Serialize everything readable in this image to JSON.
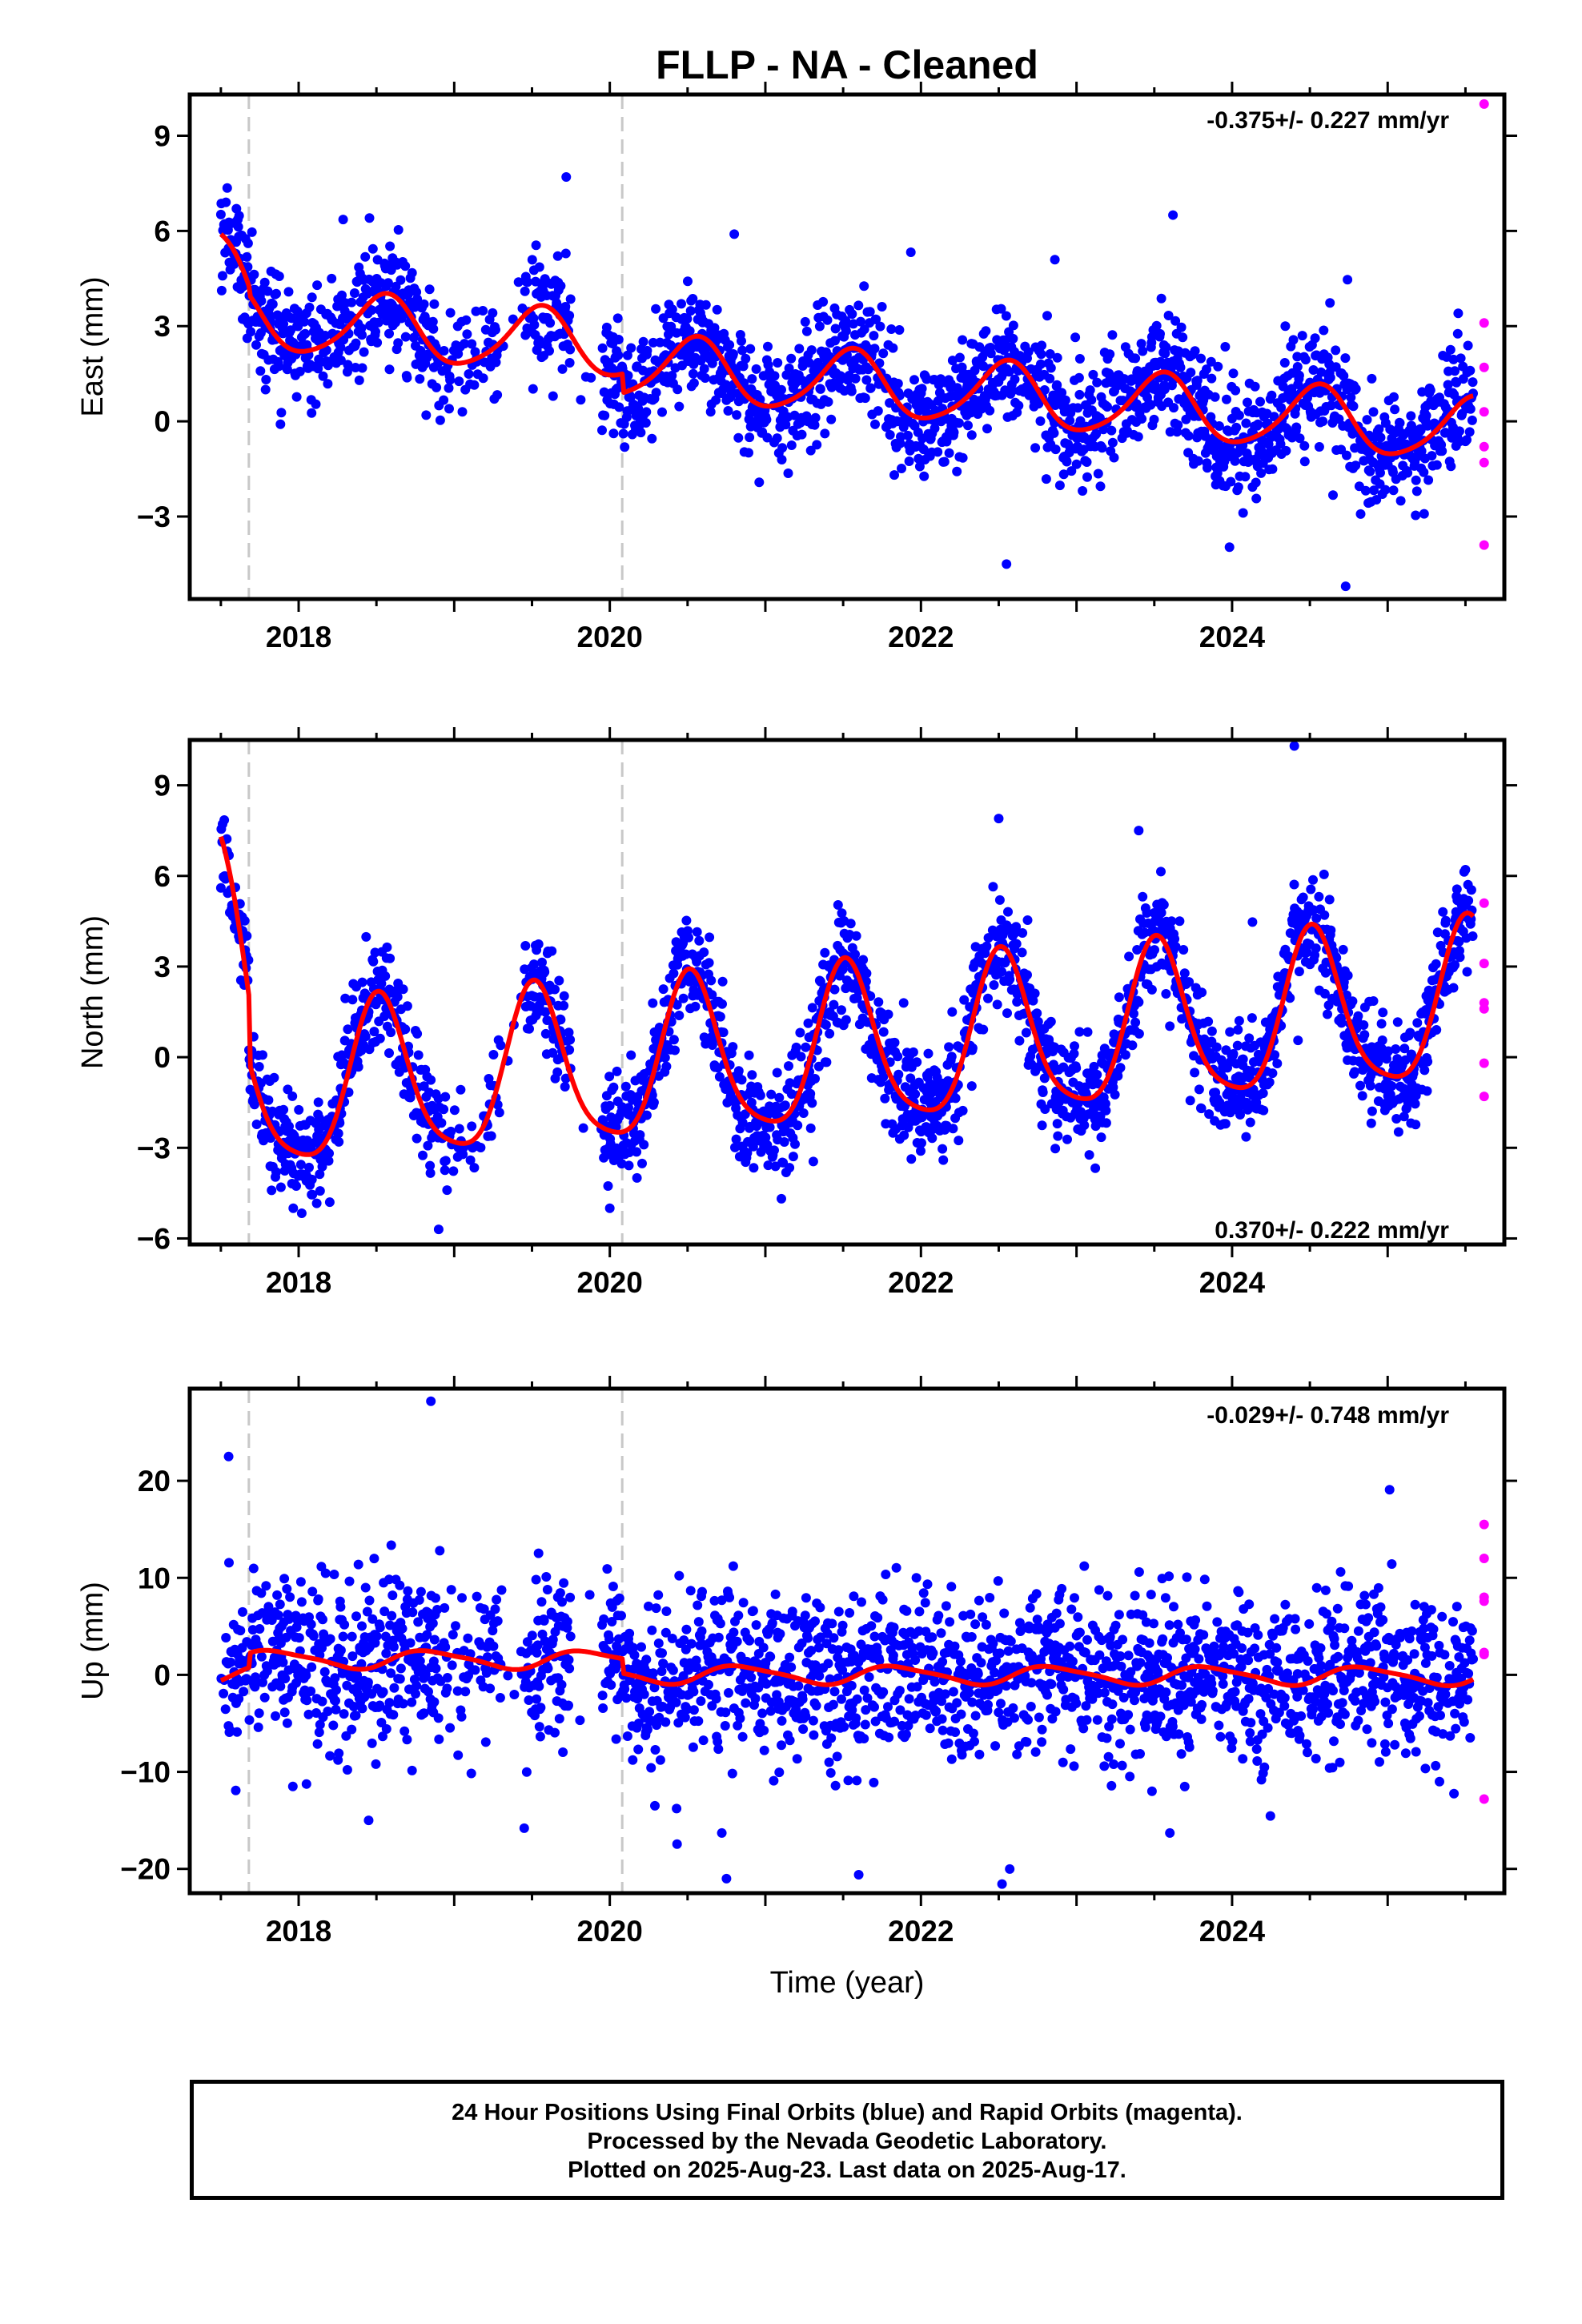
{
  "title": "FLLP  - NA - Cleaned",
  "xlabel": "Time (year)",
  "footer": {
    "line1": "24 Hour Positions Using Final Orbits (blue) and Rapid Orbits (magenta).",
    "line2": "Processed by the Nevada Geodetic Laboratory.",
    "line3": "Plotted on 2025-Aug-23. Last data on 2025-Aug-17."
  },
  "colors": {
    "final_points": "#0000ff",
    "rapid_points": "#ff00ff",
    "model": "#ff0000",
    "steps": "#c8c8c8"
  },
  "chart_data": [
    {
      "type": "scatter",
      "component": "east",
      "ylabel": "East (mm)",
      "rate_text": "-0.375+/- 0.227 mm/yr",
      "xlim": [
        2017.3,
        2025.75
      ],
      "ylim": [
        -5.6,
        10.3
      ],
      "xticks": [
        2018,
        2020,
        2022,
        2024
      ],
      "yticks": [
        -3,
        0,
        3,
        6,
        9
      ],
      "step_lines": [
        2017.68,
        2020.08
      ],
      "data_span": [
        2017.5,
        2025.55
      ],
      "model": {
        "offset": 1.2,
        "rate": -0.375,
        "ref_year": 2021.5,
        "annual_amplitude": 1.0,
        "annual_peak": 0.55,
        "semiannual_amplitude": 0.15,
        "semiannual_peak": 0.1,
        "start_transient": 2.2,
        "noise_sigma": 0.9,
        "segment_offsets": [
          {
            "from": 2017.68,
            "to": 2020.08,
            "offset": 0.6
          }
        ]
      },
      "gaps": [
        [
          2019.3,
          2019.45
        ],
        [
          2019.75,
          2019.95
        ]
      ],
      "outliers": [
        {
          "x": 2017.6,
          "y": 6.7
        },
        {
          "x": 2017.52,
          "y": 6.2
        },
        {
          "x": 2019.72,
          "y": 7.7
        },
        {
          "x": 2023.62,
          "y": 6.5
        },
        {
          "x": 2020.8,
          "y": 5.9
        },
        {
          "x": 2024.73,
          "y": -5.2
        },
        {
          "x": 2022.55,
          "y": -4.5
        }
      ],
      "rapid_points": [
        {
          "x": 2025.62,
          "y": 10.0
        },
        {
          "x": 2025.62,
          "y": 3.1
        },
        {
          "x": 2025.62,
          "y": 1.7
        },
        {
          "x": 2025.62,
          "y": 0.3
        },
        {
          "x": 2025.62,
          "y": -0.8
        },
        {
          "x": 2025.62,
          "y": -1.3
        },
        {
          "x": 2025.62,
          "y": -3.9
        }
      ]
    },
    {
      "type": "scatter",
      "component": "north",
      "ylabel": "North (mm)",
      "rate_text": "0.370+/- 0.222 mm/yr",
      "xlim": [
        2017.3,
        2025.75
      ],
      "ylim": [
        -6.2,
        10.5
      ],
      "xticks": [
        2018,
        2020,
        2022,
        2024
      ],
      "yticks": [
        -6,
        -3,
        0,
        3,
        6,
        9
      ],
      "step_lines": [
        2017.68,
        2020.08
      ],
      "data_span": [
        2017.5,
        2025.55
      ],
      "model": {
        "offset": 0.2,
        "rate": 0.37,
        "ref_year": 2021.5,
        "annual_amplitude": 2.6,
        "annual_peak": 0.52,
        "semiannual_amplitude": 0.5,
        "semiannual_peak": 0.0,
        "start_transient": 5.5,
        "noise_sigma": 0.85,
        "segment_offsets": []
      },
      "gaps": [
        [
          2019.3,
          2019.45
        ],
        [
          2019.75,
          2019.95
        ]
      ],
      "outliers": [
        {
          "x": 2024.4,
          "y": 10.3
        },
        {
          "x": 2022.5,
          "y": 7.9
        },
        {
          "x": 2023.4,
          "y": 7.5
        },
        {
          "x": 2018.9,
          "y": -5.7
        },
        {
          "x": 2020.0,
          "y": -5.0
        },
        {
          "x": 2018.2,
          "y": -4.8
        }
      ],
      "rapid_points": [
        {
          "x": 2025.62,
          "y": 5.1
        },
        {
          "x": 2025.62,
          "y": 3.1
        },
        {
          "x": 2025.62,
          "y": 1.8
        },
        {
          "x": 2025.62,
          "y": 1.6
        },
        {
          "x": 2025.62,
          "y": -0.2
        },
        {
          "x": 2025.62,
          "y": -1.3
        }
      ]
    },
    {
      "type": "scatter",
      "component": "up",
      "ylabel": "Up (mm)",
      "rate_text": "-0.029+/- 0.748 mm/yr",
      "xlim": [
        2017.3,
        2025.75
      ],
      "ylim": [
        -22.5,
        29.5
      ],
      "xticks": [
        2018,
        2020,
        2022,
        2024
      ],
      "yticks": [
        -20,
        -10,
        0,
        10,
        20
      ],
      "step_lines": [
        2017.68,
        2020.08
      ],
      "data_span": [
        2017.5,
        2025.55
      ],
      "model": {
        "offset": 0.0,
        "rate": -0.029,
        "ref_year": 2021.5,
        "annual_amplitude": 0.9,
        "annual_peak": 0.85,
        "semiannual_amplitude": 0.2,
        "semiannual_peak": 0.2,
        "start_transient": 0.0,
        "noise_sigma": 4.2,
        "segment_offsets": [
          {
            "from": 2017.68,
            "to": 2020.08,
            "offset": 1.5
          }
        ]
      },
      "gaps": [
        [
          2019.3,
          2019.45
        ],
        [
          2019.75,
          2019.95
        ]
      ],
      "outliers": [
        {
          "x": 2018.85,
          "y": 28.2
        },
        {
          "x": 2017.55,
          "y": 22.5
        },
        {
          "x": 2020.75,
          "y": -21.0
        },
        {
          "x": 2021.6,
          "y": -20.6
        },
        {
          "x": 2020.72,
          "y": -16.3
        },
        {
          "x": 2019.45,
          "y": -15.8
        },
        {
          "x": 2023.6,
          "y": -16.3
        },
        {
          "x": 2018.45,
          "y": -15.0
        }
      ],
      "rapid_points": [
        {
          "x": 2025.62,
          "y": 15.5
        },
        {
          "x": 2025.62,
          "y": 12.0
        },
        {
          "x": 2025.62,
          "y": 8.0
        },
        {
          "x": 2025.62,
          "y": 7.6
        },
        {
          "x": 2025.62,
          "y": 2.3
        },
        {
          "x": 2025.62,
          "y": 2.1
        },
        {
          "x": 2025.62,
          "y": -12.8
        }
      ]
    }
  ]
}
